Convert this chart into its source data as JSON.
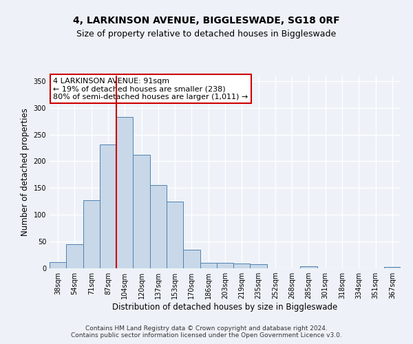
{
  "title_line1": "4, LARKINSON AVENUE, BIGGLESWADE, SG18 0RF",
  "title_line2": "Size of property relative to detached houses in Biggleswade",
  "xlabel": "Distribution of detached houses by size in Biggleswade",
  "ylabel": "Number of detached properties",
  "footer_line1": "Contains HM Land Registry data © Crown copyright and database right 2024.",
  "footer_line2": "Contains public sector information licensed under the Open Government Licence v3.0.",
  "categories": [
    "38sqm",
    "54sqm",
    "71sqm",
    "87sqm",
    "104sqm",
    "120sqm",
    "137sqm",
    "153sqm",
    "170sqm",
    "186sqm",
    "203sqm",
    "219sqm",
    "235sqm",
    "252sqm",
    "268sqm",
    "285sqm",
    "301sqm",
    "318sqm",
    "334sqm",
    "351sqm",
    "367sqm"
  ],
  "values": [
    12,
    45,
    127,
    232,
    283,
    212,
    156,
    125,
    35,
    10,
    10,
    9,
    8,
    0,
    0,
    4,
    0,
    0,
    0,
    0,
    3
  ],
  "bar_color": "#c8d8e8",
  "bar_edge_color": "#5080b0",
  "vline_x_index": 3,
  "vline_color": "#cc0000",
  "annotation_text": "4 LARKINSON AVENUE: 91sqm\n← 19% of detached houses are smaller (238)\n80% of semi-detached houses are larger (1,011) →",
  "annotation_box_color": "#ffffff",
  "annotation_box_edge_color": "#cc0000",
  "ylim": [
    0,
    360
  ],
  "yticks": [
    0,
    50,
    100,
    150,
    200,
    250,
    300,
    350
  ],
  "bg_color": "#eef2f8",
  "grid_color": "#ffffff",
  "title_fontsize": 10,
  "subtitle_fontsize": 9,
  "axis_label_fontsize": 8.5,
  "tick_fontsize": 7,
  "annotation_fontsize": 8,
  "footer_fontsize": 6.5
}
